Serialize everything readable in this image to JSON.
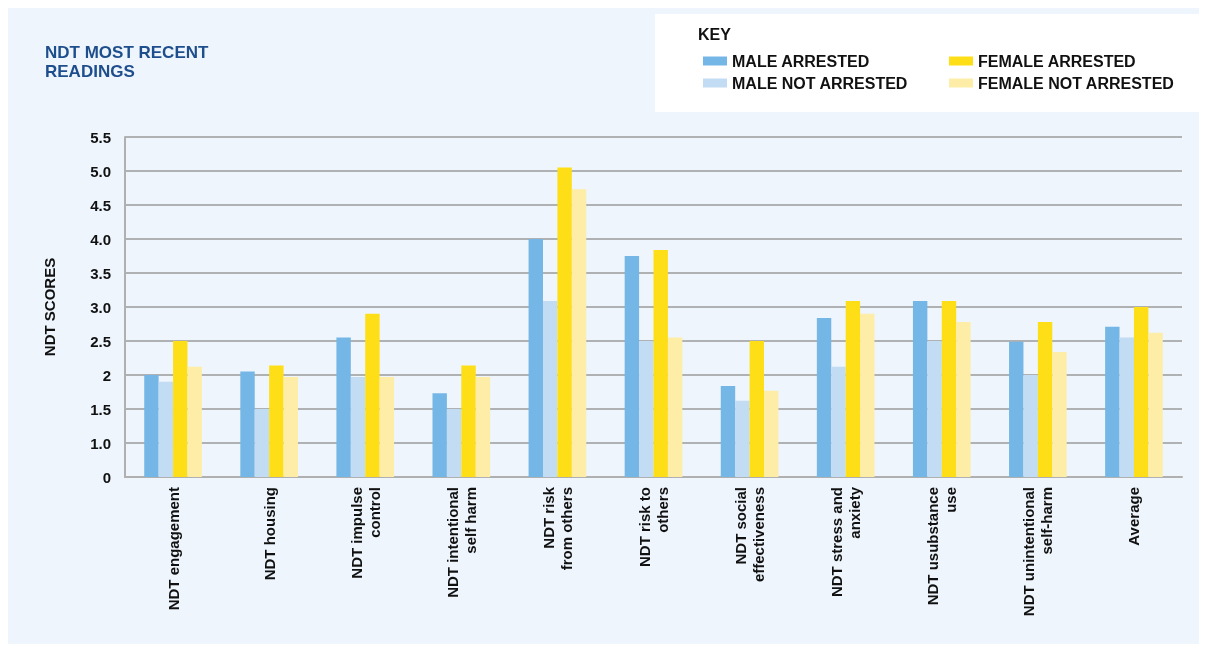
{
  "chart_data": {
    "type": "bar",
    "title": "NDT MOST RECENT\nREADINGS",
    "ylabel": "NDT SCORES",
    "legend_title": "KEY",
    "categories": [
      "NDT engagement",
      "NDT housing",
      "NDT impulse\ncontrol",
      "NDT intentional\nself harm",
      "NDT risk\nfrom others",
      "NDT risk to\nothers",
      "NDT social\neffectiveness",
      "NDT stress and\nanxiety",
      "NDT usubstance\nuse",
      "NDT unintentional\nself-harm",
      "Average"
    ],
    "series": [
      {
        "name": "MALE ARRESTED",
        "color": "#74b7e6",
        "values": [
          2.0,
          2.05,
          2.55,
          1.73,
          4.0,
          3.75,
          1.84,
          2.84,
          3.09,
          2.49,
          2.71
        ]
      },
      {
        "name": "MALE NOT ARRESTED",
        "color": "#c2dcf3",
        "values": [
          1.9,
          1.5,
          1.97,
          1.5,
          3.09,
          2.5,
          1.62,
          2.12,
          2.5,
          2.0,
          2.55
        ]
      },
      {
        "name": "FEMALE ARRESTED",
        "color": "#fedf17",
        "values": [
          2.5,
          2.14,
          2.9,
          2.14,
          5.05,
          3.84,
          2.5,
          3.09,
          3.09,
          2.78,
          3.0
        ]
      },
      {
        "name": "FEMALE NOT ARRESTED",
        "color": "#feeda6",
        "values": [
          2.12,
          1.97,
          1.97,
          1.97,
          4.73,
          2.55,
          1.77,
          2.9,
          2.78,
          2.34,
          2.62
        ]
      }
    ],
    "ylim": [
      0.5,
      5.5
    ],
    "yticks": [
      {
        "value": 0.5,
        "label": "0"
      },
      "1.0",
      "1.5",
      2,
      "2.5",
      "3.0",
      "3.5",
      "4.0",
      "4.5",
      "5.0",
      "5.5"
    ],
    "grid": "y",
    "legend": "top right"
  }
}
